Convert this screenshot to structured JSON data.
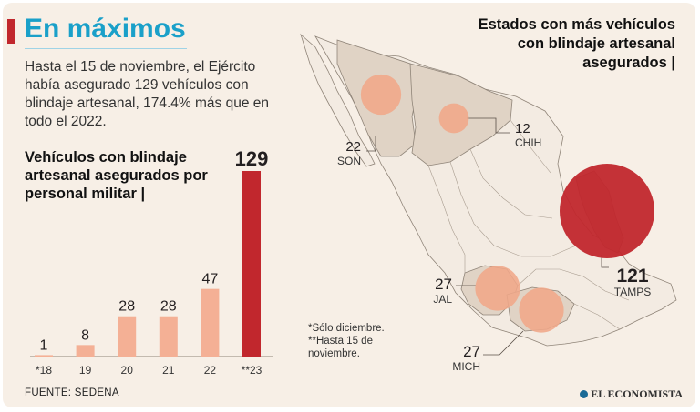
{
  "header": {
    "title": "En máximos",
    "intro": "Hasta el 15 de noviembre, el Ejército había asegurado 129 vehículos con blindaje artesanal, 174.4% más que en todo el 2022.",
    "chart_subtitle": "Vehículos con blindaje artesanal asegurados por personal militar |",
    "map_title": "Estados con más vehículos con blindaje artesanal asegurados |"
  },
  "footer": {
    "source": "FUENTE: SEDENA",
    "brand": "EL ECONOMISTA",
    "note_1": "*Sólo diciembre.",
    "note_2": "**Hasta 15 de noviembre."
  },
  "colors": {
    "bar": "#f4b095",
    "bar_highlight": "#c1272d",
    "title": "#1aa0c9",
    "map_state": "#e0d3c5",
    "bubble_light": "#f0a789",
    "bubble_dark": "#c1272d"
  },
  "chart_data": {
    "type": "bar",
    "title": "Vehículos con blindaje artesanal asegurados por personal militar",
    "categories": [
      "*18",
      "19",
      "20",
      "21",
      "22",
      "**23"
    ],
    "values": [
      1,
      8,
      28,
      28,
      47,
      129
    ],
    "highlight_index": 5,
    "ylim": [
      0,
      129
    ],
    "xlabel": "",
    "ylabel": ""
  },
  "map_data": {
    "type": "bubble-map",
    "states": [
      {
        "abbr": "SON",
        "value": 22
      },
      {
        "abbr": "CHIH",
        "value": 12
      },
      {
        "abbr": "TAMPS",
        "value": 121
      },
      {
        "abbr": "JAL",
        "value": 27
      },
      {
        "abbr": "MICH",
        "value": 27
      }
    ]
  }
}
